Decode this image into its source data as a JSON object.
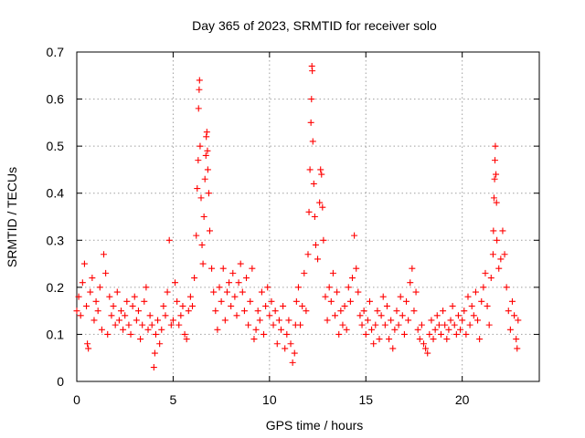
{
  "chart_data": {
    "type": "scatter",
    "title": "Day 365 of 2023, SRMTID for receiver solo",
    "xlabel": "GPS time / hours",
    "ylabel": "SRMTID / TECUs",
    "xlim": [
      0,
      24
    ],
    "ylim": [
      0,
      0.7
    ],
    "x_ticks": [
      0,
      5,
      10,
      15,
      20
    ],
    "x_tick_labels": [
      "0",
      "5",
      "10",
      "15",
      "20"
    ],
    "y_ticks": [
      0,
      0.1,
      0.2,
      0.3,
      0.4,
      0.5,
      0.6,
      0.7
    ],
    "y_tick_labels": [
      "0",
      "0.1",
      "0.2",
      "0.3",
      "0.4",
      "0.5",
      "0.6",
      "0.7"
    ],
    "grid": true,
    "marker": "+",
    "series": [
      {
        "name": "solo",
        "color": "#ff0000",
        "points": [
          [
            0.0,
            0.15
          ],
          [
            0.1,
            0.18
          ],
          [
            0.2,
            0.14
          ],
          [
            0.3,
            0.21
          ],
          [
            0.4,
            0.25
          ],
          [
            0.5,
            0.16
          ],
          [
            0.55,
            0.08
          ],
          [
            0.6,
            0.07
          ],
          [
            0.7,
            0.19
          ],
          [
            0.8,
            0.22
          ],
          [
            0.9,
            0.13
          ],
          [
            1.0,
            0.17
          ],
          [
            1.1,
            0.15
          ],
          [
            1.2,
            0.2
          ],
          [
            1.3,
            0.11
          ],
          [
            1.4,
            0.27
          ],
          [
            1.5,
            0.23
          ],
          [
            1.6,
            0.1
          ],
          [
            1.7,
            0.18
          ],
          [
            1.8,
            0.14
          ],
          [
            1.9,
            0.16
          ],
          [
            2.0,
            0.12
          ],
          [
            2.1,
            0.19
          ],
          [
            2.2,
            0.13
          ],
          [
            2.3,
            0.15
          ],
          [
            2.4,
            0.11
          ],
          [
            2.5,
            0.14
          ],
          [
            2.6,
            0.17
          ],
          [
            2.7,
            0.12
          ],
          [
            2.8,
            0.1
          ],
          [
            2.9,
            0.16
          ],
          [
            3.0,
            0.18
          ],
          [
            3.1,
            0.13
          ],
          [
            3.2,
            0.15
          ],
          [
            3.3,
            0.09
          ],
          [
            3.4,
            0.12
          ],
          [
            3.5,
            0.17
          ],
          [
            3.6,
            0.2
          ],
          [
            3.7,
            0.11
          ],
          [
            3.8,
            0.14
          ],
          [
            3.9,
            0.12
          ],
          [
            4.0,
            0.03
          ],
          [
            4.05,
            0.06
          ],
          [
            4.1,
            0.1
          ],
          [
            4.2,
            0.13
          ],
          [
            4.3,
            0.08
          ],
          [
            4.4,
            0.11
          ],
          [
            4.5,
            0.16
          ],
          [
            4.6,
            0.14
          ],
          [
            4.7,
            0.19
          ],
          [
            4.8,
            0.3
          ],
          [
            4.9,
            0.12
          ],
          [
            5.0,
            0.13
          ],
          [
            5.1,
            0.21
          ],
          [
            5.2,
            0.17
          ],
          [
            5.3,
            0.12
          ],
          [
            5.4,
            0.14
          ],
          [
            5.5,
            0.16
          ],
          [
            5.6,
            0.1
          ],
          [
            5.7,
            0.09
          ],
          [
            5.8,
            0.15
          ],
          [
            5.9,
            0.18
          ],
          [
            6.0,
            0.16
          ],
          [
            6.1,
            0.22
          ],
          [
            6.2,
            0.31
          ],
          [
            6.25,
            0.41
          ],
          [
            6.3,
            0.47
          ],
          [
            6.32,
            0.58
          ],
          [
            6.35,
            0.62
          ],
          [
            6.37,
            0.64
          ],
          [
            6.4,
            0.5
          ],
          [
            6.45,
            0.39
          ],
          [
            6.5,
            0.29
          ],
          [
            6.55,
            0.25
          ],
          [
            6.6,
            0.35
          ],
          [
            6.65,
            0.43
          ],
          [
            6.7,
            0.48
          ],
          [
            6.72,
            0.52
          ],
          [
            6.75,
            0.53
          ],
          [
            6.78,
            0.49
          ],
          [
            6.8,
            0.45
          ],
          [
            6.85,
            0.4
          ],
          [
            6.9,
            0.32
          ],
          [
            7.0,
            0.24
          ],
          [
            7.1,
            0.19
          ],
          [
            7.2,
            0.15
          ],
          [
            7.3,
            0.11
          ],
          [
            7.4,
            0.2
          ],
          [
            7.5,
            0.17
          ],
          [
            7.6,
            0.24
          ],
          [
            7.7,
            0.13
          ],
          [
            7.8,
            0.19
          ],
          [
            7.9,
            0.21
          ],
          [
            8.0,
            0.16
          ],
          [
            8.1,
            0.23
          ],
          [
            8.2,
            0.18
          ],
          [
            8.3,
            0.14
          ],
          [
            8.4,
            0.21
          ],
          [
            8.5,
            0.25
          ],
          [
            8.6,
            0.19
          ],
          [
            8.7,
            0.15
          ],
          [
            8.8,
            0.22
          ],
          [
            8.9,
            0.12
          ],
          [
            9.0,
            0.17
          ],
          [
            9.1,
            0.24
          ],
          [
            9.2,
            0.09
          ],
          [
            9.3,
            0.11
          ],
          [
            9.4,
            0.15
          ],
          [
            9.5,
            0.13
          ],
          [
            9.6,
            0.19
          ],
          [
            9.7,
            0.1
          ],
          [
            9.8,
            0.16
          ],
          [
            9.9,
            0.2
          ],
          [
            10.0,
            0.14
          ],
          [
            10.1,
            0.17
          ],
          [
            10.2,
            0.12
          ],
          [
            10.3,
            0.15
          ],
          [
            10.4,
            0.08
          ],
          [
            10.5,
            0.13
          ],
          [
            10.6,
            0.11
          ],
          [
            10.7,
            0.16
          ],
          [
            10.8,
            0.07
          ],
          [
            10.9,
            0.1
          ],
          [
            11.0,
            0.13
          ],
          [
            11.1,
            0.08
          ],
          [
            11.2,
            0.04
          ],
          [
            11.3,
            0.06
          ],
          [
            11.35,
            0.12
          ],
          [
            11.4,
            0.17
          ],
          [
            11.5,
            0.2
          ],
          [
            11.6,
            0.12
          ],
          [
            11.7,
            0.16
          ],
          [
            11.8,
            0.23
          ],
          [
            11.9,
            0.15
          ],
          [
            12.0,
            0.27
          ],
          [
            12.05,
            0.36
          ],
          [
            12.1,
            0.45
          ],
          [
            12.15,
            0.55
          ],
          [
            12.18,
            0.6
          ],
          [
            12.2,
            0.67
          ],
          [
            12.22,
            0.66
          ],
          [
            12.25,
            0.51
          ],
          [
            12.3,
            0.42
          ],
          [
            12.35,
            0.35
          ],
          [
            12.4,
            0.29
          ],
          [
            12.5,
            0.26
          ],
          [
            12.6,
            0.38
          ],
          [
            12.65,
            0.45
          ],
          [
            12.7,
            0.44
          ],
          [
            12.75,
            0.37
          ],
          [
            12.8,
            0.3
          ],
          [
            12.9,
            0.18
          ],
          [
            13.0,
            0.13
          ],
          [
            13.1,
            0.2
          ],
          [
            13.2,
            0.17
          ],
          [
            13.3,
            0.23
          ],
          [
            13.4,
            0.14
          ],
          [
            13.5,
            0.19
          ],
          [
            13.6,
            0.1
          ],
          [
            13.7,
            0.15
          ],
          [
            13.8,
            0.12
          ],
          [
            13.9,
            0.16
          ],
          [
            14.0,
            0.11
          ],
          [
            14.1,
            0.2
          ],
          [
            14.2,
            0.17
          ],
          [
            14.3,
            0.22
          ],
          [
            14.4,
            0.31
          ],
          [
            14.5,
            0.24
          ],
          [
            14.6,
            0.19
          ],
          [
            14.7,
            0.14
          ],
          [
            14.8,
            0.12
          ],
          [
            14.9,
            0.15
          ],
          [
            15.0,
            0.1
          ],
          [
            15.1,
            0.13
          ],
          [
            15.2,
            0.17
          ],
          [
            15.3,
            0.11
          ],
          [
            15.4,
            0.08
          ],
          [
            15.5,
            0.12
          ],
          [
            15.6,
            0.15
          ],
          [
            15.7,
            0.09
          ],
          [
            15.8,
            0.14
          ],
          [
            15.9,
            0.18
          ],
          [
            16.0,
            0.12
          ],
          [
            16.1,
            0.16
          ],
          [
            16.2,
            0.09
          ],
          [
            16.3,
            0.13
          ],
          [
            16.4,
            0.07
          ],
          [
            16.5,
            0.11
          ],
          [
            16.6,
            0.15
          ],
          [
            16.7,
            0.12
          ],
          [
            16.8,
            0.18
          ],
          [
            16.9,
            0.14
          ],
          [
            17.0,
            0.1
          ],
          [
            17.1,
            0.17
          ],
          [
            17.2,
            0.13
          ],
          [
            17.3,
            0.21
          ],
          [
            17.4,
            0.24
          ],
          [
            17.5,
            0.15
          ],
          [
            17.6,
            0.19
          ],
          [
            17.7,
            0.11
          ],
          [
            17.8,
            0.09
          ],
          [
            17.9,
            0.12
          ],
          [
            18.0,
            0.08
          ],
          [
            18.1,
            0.07
          ],
          [
            18.2,
            0.06
          ],
          [
            18.3,
            0.1
          ],
          [
            18.4,
            0.13
          ],
          [
            18.5,
            0.09
          ],
          [
            18.6,
            0.11
          ],
          [
            18.7,
            0.14
          ],
          [
            18.8,
            0.12
          ],
          [
            18.9,
            0.1
          ],
          [
            19.0,
            0.15
          ],
          [
            19.1,
            0.12
          ],
          [
            19.2,
            0.09
          ],
          [
            19.3,
            0.11
          ],
          [
            19.4,
            0.13
          ],
          [
            19.5,
            0.16
          ],
          [
            19.6,
            0.12
          ],
          [
            19.7,
            0.1
          ],
          [
            19.8,
            0.14
          ],
          [
            19.9,
            0.11
          ],
          [
            20.0,
            0.13
          ],
          [
            20.1,
            0.15
          ],
          [
            20.2,
            0.1
          ],
          [
            20.3,
            0.18
          ],
          [
            20.4,
            0.12
          ],
          [
            20.5,
            0.16
          ],
          [
            20.6,
            0.14
          ],
          [
            20.7,
            0.19
          ],
          [
            20.8,
            0.13
          ],
          [
            20.9,
            0.09
          ],
          [
            21.0,
            0.17
          ],
          [
            21.1,
            0.2
          ],
          [
            21.2,
            0.23
          ],
          [
            21.3,
            0.16
          ],
          [
            21.4,
            0.12
          ],
          [
            21.5,
            0.22
          ],
          [
            21.6,
            0.27
          ],
          [
            21.62,
            0.32
          ],
          [
            21.65,
            0.39
          ],
          [
            21.68,
            0.43
          ],
          [
            21.7,
            0.47
          ],
          [
            21.72,
            0.5
          ],
          [
            21.75,
            0.44
          ],
          [
            21.78,
            0.38
          ],
          [
            21.8,
            0.3
          ],
          [
            21.9,
            0.24
          ],
          [
            22.0,
            0.26
          ],
          [
            22.1,
            0.32
          ],
          [
            22.2,
            0.27
          ],
          [
            22.3,
            0.2
          ],
          [
            22.4,
            0.15
          ],
          [
            22.5,
            0.11
          ],
          [
            22.6,
            0.17
          ],
          [
            22.7,
            0.14
          ],
          [
            22.8,
            0.09
          ],
          [
            22.85,
            0.07
          ],
          [
            22.9,
            0.13
          ]
        ]
      }
    ]
  }
}
